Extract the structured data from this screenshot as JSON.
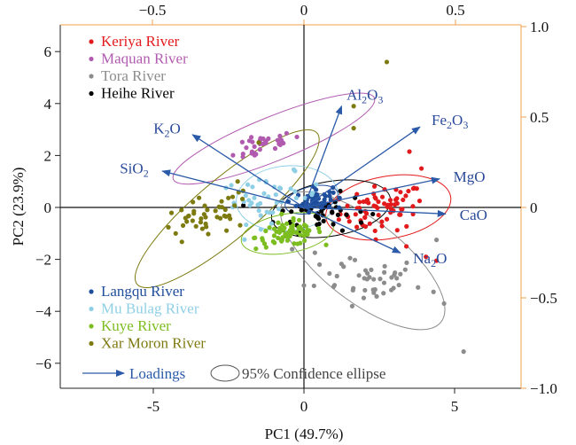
{
  "chart_data": {
    "type": "scatter",
    "subtype": "PCA biplot",
    "xlabel": "PC1 (49.7%)",
    "ylabel": "PC2 (23.9%)",
    "xlim": [
      -7.3,
      7.3
    ],
    "ylim": [
      -7.0,
      7.0
    ],
    "x_ticks": [
      -5,
      0,
      5
    ],
    "y_ticks": [
      -6,
      -4,
      -2,
      0,
      2,
      4,
      6
    ],
    "secondary_x_ticks": [
      -0.5,
      0,
      0.5
    ],
    "secondary_y_ticks": [
      1.0,
      0.5,
      0,
      -0.5,
      -1.0
    ],
    "secondary_x_ticks_label": [
      "−0.5",
      "0",
      "0.5"
    ],
    "secondary_y_ticks_label": [
      "1.0",
      "0.5",
      "0",
      "−0.5",
      "−1.0"
    ],
    "secondary_axis_color": "#f0a050",
    "zero_lines": true,
    "legend_top": {
      "placement": "top-left",
      "names": [
        "Keriya River",
        "Maquan River",
        "Tora River",
        "Heihe River"
      ],
      "colors": [
        "#e31a1c",
        "#b15bb0",
        "#8c8c8c",
        "#000000"
      ]
    },
    "legend_bottom": {
      "placement": "bottom-left",
      "names": [
        "Langqu River",
        "Mu Bulag River",
        "Kuye River",
        "Xar Moron River"
      ],
      "colors": [
        "#1f4e9c",
        "#8fcfe6",
        "#7cbd1f",
        "#7d7a10"
      ]
    },
    "key": {
      "loadings": "Loadings",
      "ellipse": "95% Confidence ellipse"
    },
    "loadings_color": "#2a5aa8",
    "loadings": [
      {
        "label_parts": [
          "Al",
          "2",
          "O",
          "3"
        ],
        "x": 1.25,
        "y": 3.9
      },
      {
        "label_parts": [
          "Fe",
          "2",
          "O",
          "3"
        ],
        "x": 3.85,
        "y": 3.1
      },
      {
        "label_parts": [
          "K",
          "2",
          "O"
        ],
        "x": -3.7,
        "y": 2.8
      },
      {
        "label_parts": [
          "SiO",
          "2"
        ],
        "x": -4.7,
        "y": 1.4
      },
      {
        "label_parts": [
          "MgO"
        ],
        "x": 4.5,
        "y": 1.1
      },
      {
        "label_parts": [
          "CaO"
        ],
        "x": 4.7,
        "y": -0.25
      },
      {
        "label_parts": [
          "Na",
          "2",
          "O"
        ],
        "x": 3.2,
        "y": -1.75
      }
    ],
    "series": [
      {
        "name": "Keriya River",
        "color": "#e31a1c",
        "cx": 2.6,
        "cy": -0.05,
        "sx": 0.7,
        "sy": 0.45,
        "rho": 0.2,
        "n": 70,
        "ellipse": {
          "cx": 2.8,
          "cy": 0.0,
          "a": 2.1,
          "b": 1.2,
          "angle": 10
        },
        "extra": [
          [
            4.05,
            -1.9
          ],
          [
            4.4,
            -2.05
          ],
          [
            3.5,
            2.15
          ],
          [
            3.9,
            1.5
          ],
          [
            3.4,
            -1.5
          ]
        ]
      },
      {
        "name": "Maquan River",
        "color": "#b15bb0",
        "cx": -1.4,
        "cy": 2.35,
        "sx": 0.55,
        "sy": 0.3,
        "rho": 0.75,
        "n": 35,
        "ellipse": {
          "cx": -1.0,
          "cy": 2.65,
          "a": 3.6,
          "b": 0.85,
          "angle": 22
        },
        "extra": []
      },
      {
        "name": "Tora River",
        "color": "#8c8c8c",
        "cx": 1.9,
        "cy": -2.6,
        "sx": 1.0,
        "sy": 0.55,
        "rho": -0.35,
        "n": 45,
        "ellipse": {
          "cx": 1.95,
          "cy": -2.05,
          "a": 3.3,
          "b": 1.55,
          "angle": -38
        },
        "extra": [
          [
            5.3,
            -5.55
          ],
          [
            4.65,
            -3.7
          ],
          [
            4.3,
            -3.25
          ],
          [
            4.4,
            -1.25
          ],
          [
            1.6,
            -3.8
          ]
        ]
      },
      {
        "name": "Heihe River",
        "color": "#000000",
        "cx": 0.6,
        "cy": -0.2,
        "sx": 0.75,
        "sy": 0.35,
        "rho": 0.1,
        "n": 45,
        "ellipse": {
          "cx": 0.9,
          "cy": -0.05,
          "a": 2.0,
          "b": 1.05,
          "angle": 10
        },
        "extra": []
      },
      {
        "name": "Langqu River",
        "color": "#1f4e9c",
        "cx": 0.35,
        "cy": 0.3,
        "sx": 0.3,
        "sy": 0.22,
        "rho": 0.2,
        "n": 55,
        "ellipse": {
          "cx": 0.25,
          "cy": 0.3,
          "a": 0.9,
          "b": 0.5,
          "angle": 15
        },
        "extra": []
      },
      {
        "name": "Mu Bulag River",
        "color": "#8fcfe6",
        "cx": -1.1,
        "cy": 0.35,
        "sx": 0.85,
        "sy": 0.45,
        "rho": 0.2,
        "n": 45,
        "ellipse": {
          "cx": -0.55,
          "cy": 0.35,
          "a": 1.7,
          "b": 1.25,
          "angle": 5
        },
        "extra": []
      },
      {
        "name": "Kuye River",
        "color": "#7cbd1f",
        "cx": -0.5,
        "cy": -1.0,
        "sx": 0.55,
        "sy": 0.25,
        "rho": 0.3,
        "n": 75,
        "ellipse": {
          "cx": -0.55,
          "cy": -1.0,
          "a": 1.55,
          "b": 0.75,
          "angle": 10
        },
        "extra": []
      },
      {
        "name": "Xar Moron River",
        "color": "#7d7a10",
        "cx": -3.3,
        "cy": -0.45,
        "sx": 0.8,
        "sy": 0.5,
        "rho": 0.55,
        "n": 45,
        "ellipse": {
          "cx": -2.55,
          "cy": -0.05,
          "a": 3.9,
          "b": 1.15,
          "angle": 40
        },
        "extra": [
          [
            -1.5,
            2.5
          ],
          [
            -2.2,
            1.0
          ],
          [
            1.65,
            3.05
          ],
          [
            1.65,
            3.9
          ],
          [
            2.75,
            5.6
          ]
        ]
      }
    ]
  }
}
